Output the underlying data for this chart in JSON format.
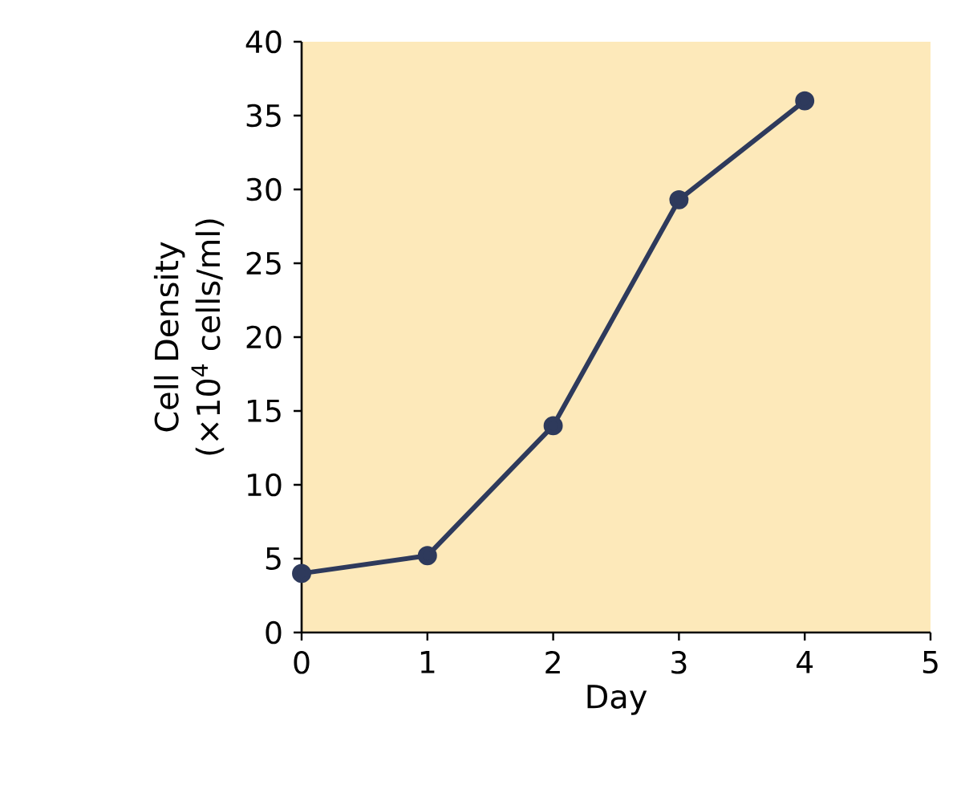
{
  "chart_data": {
    "type": "line",
    "xlabel": "Day",
    "ylabel": "Cell Density (×10$^{4}$ cells/ml)",
    "x": [
      0,
      1,
      2,
      3,
      4
    ],
    "series": [
      {
        "color": "#2e3a5c",
        "values": [
          4,
          5.2,
          14,
          29.3,
          36
        ]
      }
    ],
    "xlim": [
      0,
      5
    ],
    "xticks": [
      0,
      1,
      2,
      3,
      4,
      5
    ],
    "ylim": [
      0,
      40
    ],
    "yticks": [
      0,
      5,
      10,
      15,
      20,
      25,
      30,
      35,
      40
    ],
    "marker": "circle",
    "line_style": "solid",
    "grid": false
  }
}
